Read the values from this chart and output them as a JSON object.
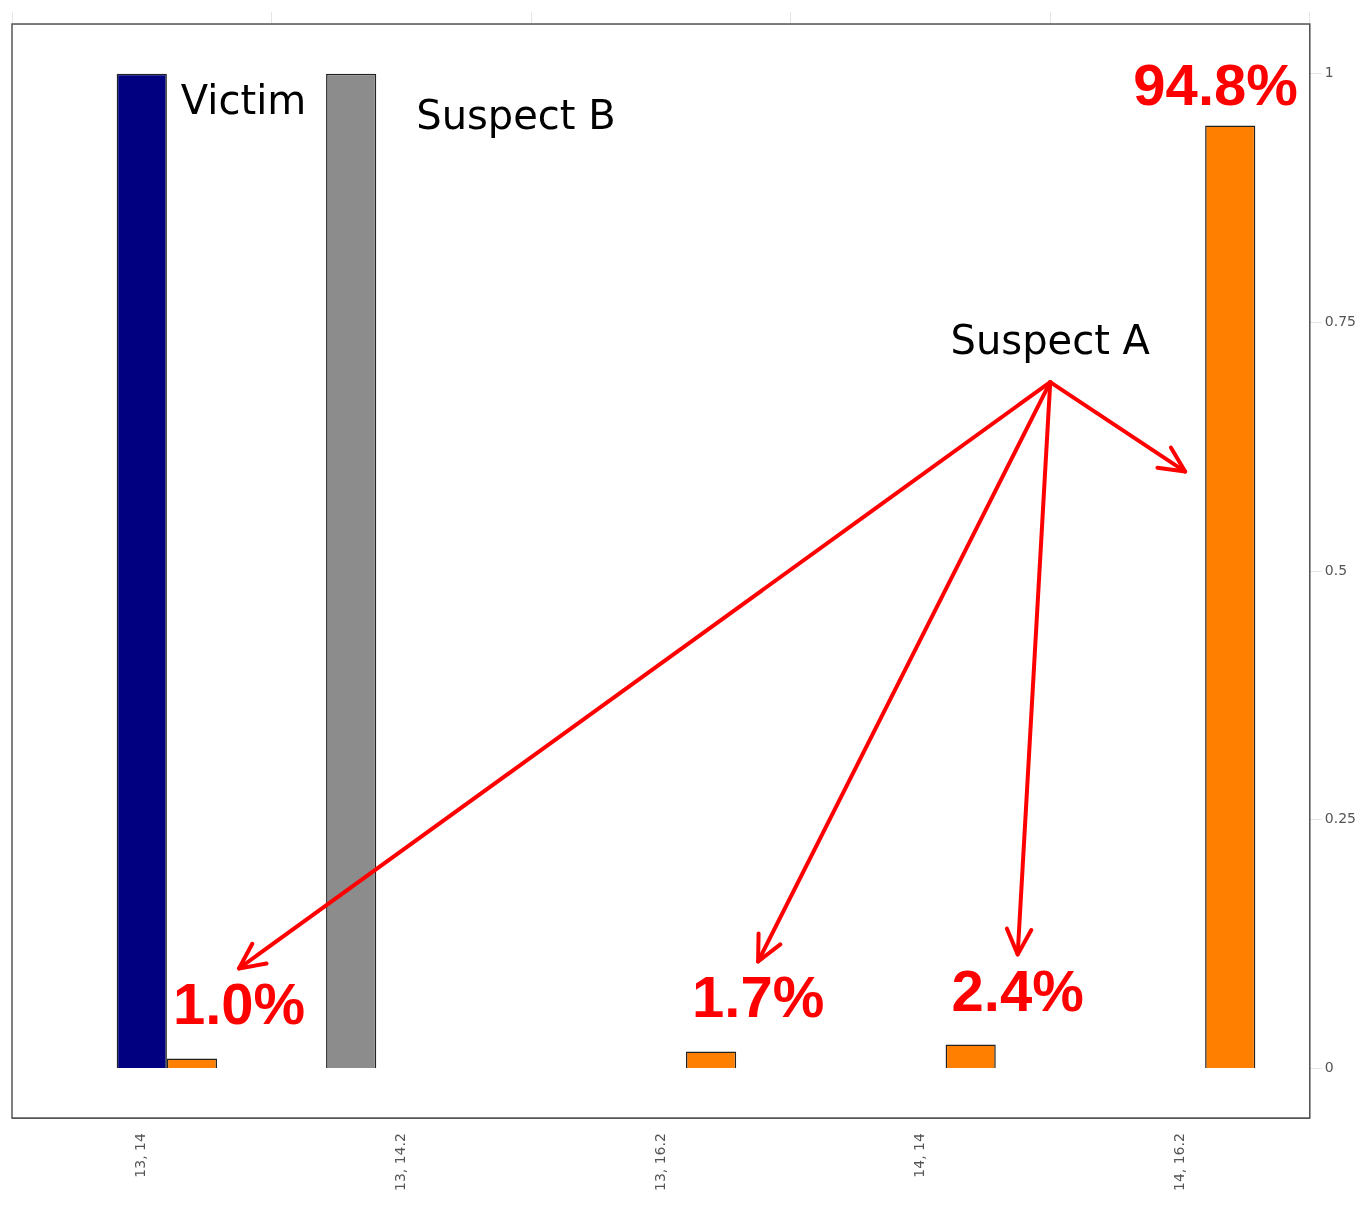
{
  "chart_data": {
    "type": "bar",
    "categories": [
      "13, 14",
      "13, 14.2",
      "13, 16.2",
      "14, 14",
      "14, 16.2"
    ],
    "series": [
      {
        "name": "Suspect B",
        "color": "#8c8c8c",
        "values": [
          0,
          1,
          0,
          0,
          0
        ]
      },
      {
        "name": "Victim",
        "color": "#000080",
        "values": [
          1,
          0,
          0,
          0,
          0
        ]
      },
      {
        "name": "Suspect A",
        "color": "#ff7f00",
        "values": [
          0.01,
          0,
          0.017,
          0.024,
          0.948
        ],
        "value_labels": [
          "1.0%",
          null,
          "1.7%",
          "2.4%",
          "94.8%"
        ]
      }
    ],
    "ylim": [
      -0.05,
      1.05
    ],
    "yticks": [
      0,
      0.25,
      0.5,
      0.75,
      1
    ],
    "grid": false,
    "legend": false
  }
}
